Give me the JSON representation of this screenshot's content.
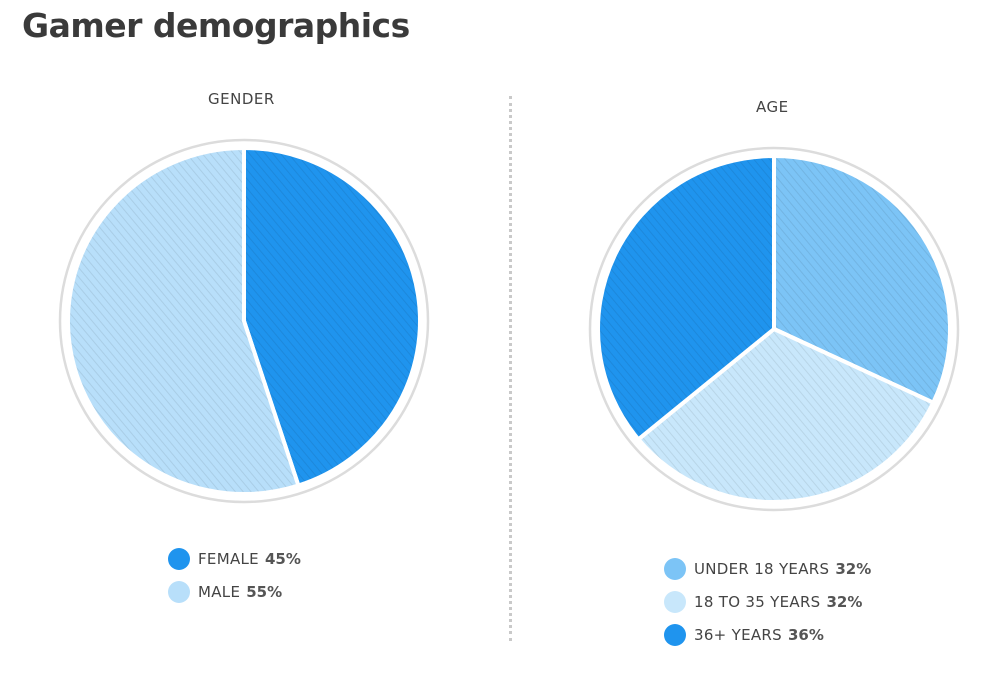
{
  "header": {
    "title": "Gamer demographics"
  },
  "colors": {
    "dark": "#1f94ee",
    "mid": "#7cc4f6",
    "light": "#b8dffa",
    "ring": "#dcdcdc"
  },
  "chart_data": [
    {
      "type": "pie",
      "title": "GENDER",
      "slices": [
        {
          "label": "FEMALE",
          "value": 45,
          "value_label": "45%",
          "color": "#1f94ee"
        },
        {
          "label": "MALE",
          "value": 55,
          "value_label": "55%",
          "color": "#b8dffa"
        }
      ],
      "legend_position": "bottom"
    },
    {
      "type": "pie",
      "title": "AGE",
      "slices": [
        {
          "label": "UNDER 18 YEARS",
          "value": 32,
          "value_label": "32%",
          "color": "#7cc4f6"
        },
        {
          "label": "18 TO 35 YEARS",
          "value": 32,
          "value_label": "32%",
          "color": "#c8e7fb"
        },
        {
          "label": "36+ YEARS",
          "value": 36,
          "value_label": "36%",
          "color": "#1f94ee"
        }
      ],
      "legend_position": "bottom"
    }
  ]
}
